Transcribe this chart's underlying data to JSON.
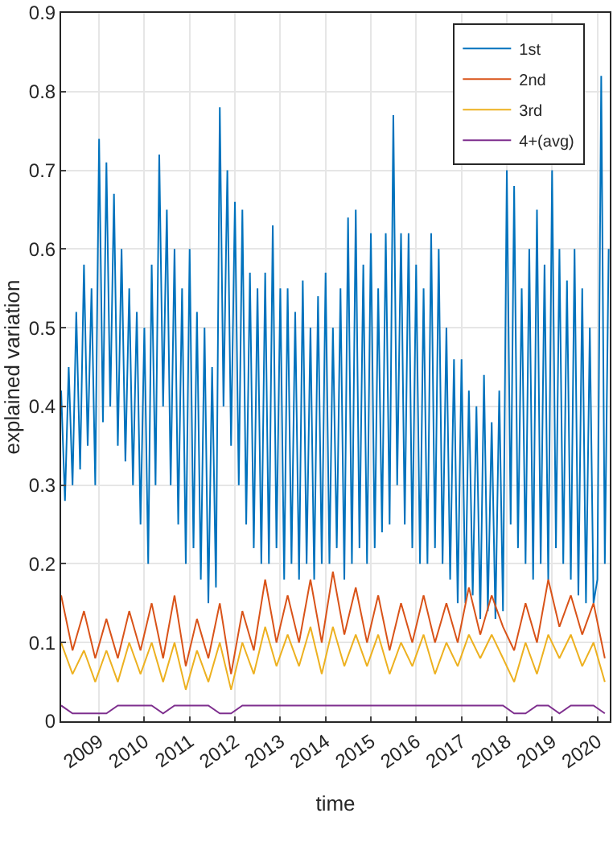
{
  "chart_data": {
    "type": "line",
    "xlabel": "time",
    "ylabel": "explained variation",
    "x": [
      "2008-03",
      "2008-04",
      "2008-05",
      "2008-06",
      "2008-07",
      "2008-08",
      "2008-09",
      "2008-10",
      "2008-11",
      "2008-12",
      "2009-01",
      "2009-02",
      "2009-03",
      "2009-04",
      "2009-05",
      "2009-06",
      "2009-07",
      "2009-08",
      "2009-09",
      "2009-10",
      "2009-11",
      "2009-12",
      "2010-01",
      "2010-02",
      "2010-03",
      "2010-04",
      "2010-05",
      "2010-06",
      "2010-07",
      "2010-08",
      "2010-09",
      "2010-10",
      "2010-11",
      "2010-12",
      "2011-01",
      "2011-02",
      "2011-03",
      "2011-04",
      "2011-05",
      "2011-06",
      "2011-07",
      "2011-08",
      "2011-09",
      "2011-10",
      "2011-11",
      "2011-12",
      "2012-01",
      "2012-02",
      "2012-03",
      "2012-04",
      "2012-05",
      "2012-06",
      "2012-07",
      "2012-08",
      "2012-09",
      "2012-10",
      "2012-11",
      "2012-12",
      "2013-01",
      "2013-02",
      "2013-03",
      "2013-04",
      "2013-05",
      "2013-06",
      "2013-07",
      "2013-08",
      "2013-09",
      "2013-10",
      "2013-11",
      "2013-12",
      "2014-01",
      "2014-02",
      "2014-03",
      "2014-04",
      "2014-05",
      "2014-06",
      "2014-07",
      "2014-08",
      "2014-09",
      "2014-10",
      "2014-11",
      "2014-12",
      "2015-01",
      "2015-02",
      "2015-03",
      "2015-04",
      "2015-05",
      "2015-06",
      "2015-07",
      "2015-08",
      "2015-09",
      "2015-10",
      "2015-11",
      "2015-12",
      "2016-01",
      "2016-02",
      "2016-03",
      "2016-04",
      "2016-05",
      "2016-06",
      "2016-07",
      "2016-08",
      "2016-09",
      "2016-10",
      "2016-11",
      "2016-12",
      "2017-01",
      "2017-02",
      "2017-03",
      "2017-04",
      "2017-05",
      "2017-06",
      "2017-07",
      "2017-08",
      "2017-09",
      "2017-10",
      "2017-11",
      "2017-12",
      "2018-01",
      "2018-02",
      "2018-03",
      "2018-04",
      "2018-05",
      "2018-06",
      "2018-07",
      "2018-08",
      "2018-09",
      "2018-10",
      "2018-11",
      "2018-12",
      "2019-01",
      "2019-02",
      "2019-03",
      "2019-04",
      "2019-05",
      "2019-06",
      "2019-07",
      "2019-08",
      "2019-09",
      "2019-10",
      "2019-11",
      "2019-12",
      "2020-01",
      "2020-02",
      "2020-03",
      "2020-04"
    ],
    "series": [
      {
        "name": "1st",
        "color": "#0072bd",
        "values": [
          0.42,
          0.28,
          0.45,
          0.3,
          0.52,
          0.32,
          0.58,
          0.35,
          0.55,
          0.3,
          0.74,
          0.38,
          0.71,
          0.4,
          0.67,
          0.35,
          0.6,
          0.33,
          0.55,
          0.3,
          0.52,
          0.25,
          0.5,
          0.2,
          0.58,
          0.3,
          0.72,
          0.4,
          0.65,
          0.3,
          0.6,
          0.25,
          0.55,
          0.2,
          0.6,
          0.22,
          0.52,
          0.18,
          0.5,
          0.15,
          0.45,
          0.17,
          0.78,
          0.4,
          0.7,
          0.35,
          0.66,
          0.3,
          0.65,
          0.25,
          0.57,
          0.22,
          0.55,
          0.2,
          0.57,
          0.2,
          0.63,
          0.22,
          0.55,
          0.18,
          0.55,
          0.2,
          0.52,
          0.18,
          0.56,
          0.2,
          0.5,
          0.18,
          0.54,
          0.2,
          0.57,
          0.2,
          0.5,
          0.22,
          0.55,
          0.18,
          0.64,
          0.2,
          0.65,
          0.22,
          0.58,
          0.2,
          0.62,
          0.22,
          0.55,
          0.24,
          0.62,
          0.25,
          0.77,
          0.3,
          0.62,
          0.25,
          0.62,
          0.22,
          0.58,
          0.2,
          0.55,
          0.2,
          0.62,
          0.22,
          0.6,
          0.2,
          0.5,
          0.18,
          0.46,
          0.15,
          0.46,
          0.15,
          0.42,
          0.16,
          0.4,
          0.13,
          0.44,
          0.14,
          0.38,
          0.13,
          0.42,
          0.14,
          0.7,
          0.25,
          0.68,
          0.22,
          0.55,
          0.2,
          0.6,
          0.18,
          0.65,
          0.2,
          0.58,
          0.18,
          0.7,
          0.22,
          0.6,
          0.2,
          0.56,
          0.18,
          0.6,
          0.16,
          0.55,
          0.15,
          0.5,
          0.15,
          0.18,
          0.82,
          0.2,
          0.6
        ]
      },
      {
        "name": "2nd",
        "color": "#d95319",
        "x": [
          "2008-03",
          "2008-06",
          "2008-09",
          "2008-12",
          "2009-03",
          "2009-06",
          "2009-09",
          "2009-12",
          "2010-03",
          "2010-06",
          "2010-09",
          "2010-12",
          "2011-03",
          "2011-06",
          "2011-09",
          "2011-12",
          "2012-03",
          "2012-06",
          "2012-09",
          "2012-12",
          "2013-03",
          "2013-06",
          "2013-09",
          "2013-12",
          "2014-03",
          "2014-06",
          "2014-09",
          "2014-12",
          "2015-03",
          "2015-06",
          "2015-09",
          "2015-12",
          "2016-03",
          "2016-06",
          "2016-09",
          "2016-12",
          "2017-03",
          "2017-06",
          "2017-09",
          "2017-12",
          "2018-03",
          "2018-06",
          "2018-09",
          "2018-12",
          "2019-03",
          "2019-06",
          "2019-09",
          "2019-12",
          "2020-03"
        ],
        "values": [
          0.16,
          0.09,
          0.14,
          0.08,
          0.13,
          0.08,
          0.14,
          0.09,
          0.15,
          0.08,
          0.16,
          0.07,
          0.13,
          0.08,
          0.15,
          0.06,
          0.14,
          0.09,
          0.18,
          0.1,
          0.16,
          0.1,
          0.18,
          0.1,
          0.19,
          0.11,
          0.17,
          0.1,
          0.16,
          0.09,
          0.15,
          0.1,
          0.16,
          0.1,
          0.15,
          0.1,
          0.17,
          0.11,
          0.16,
          0.12,
          0.09,
          0.15,
          0.1,
          0.18,
          0.12,
          0.16,
          0.11,
          0.15,
          0.08
        ]
      },
      {
        "name": "3rd",
        "color": "#edb120",
        "x": [
          "2008-03",
          "2008-06",
          "2008-09",
          "2008-12",
          "2009-03",
          "2009-06",
          "2009-09",
          "2009-12",
          "2010-03",
          "2010-06",
          "2010-09",
          "2010-12",
          "2011-03",
          "2011-06",
          "2011-09",
          "2011-12",
          "2012-03",
          "2012-06",
          "2012-09",
          "2012-12",
          "2013-03",
          "2013-06",
          "2013-09",
          "2013-12",
          "2014-03",
          "2014-06",
          "2014-09",
          "2014-12",
          "2015-03",
          "2015-06",
          "2015-09",
          "2015-12",
          "2016-03",
          "2016-06",
          "2016-09",
          "2016-12",
          "2017-03",
          "2017-06",
          "2017-09",
          "2017-12",
          "2018-03",
          "2018-06",
          "2018-09",
          "2018-12",
          "2019-03",
          "2019-06",
          "2019-09",
          "2019-12",
          "2020-03"
        ],
        "values": [
          0.1,
          0.06,
          0.09,
          0.05,
          0.09,
          0.05,
          0.1,
          0.06,
          0.1,
          0.05,
          0.1,
          0.04,
          0.09,
          0.05,
          0.1,
          0.04,
          0.1,
          0.06,
          0.12,
          0.07,
          0.11,
          0.07,
          0.12,
          0.06,
          0.12,
          0.07,
          0.11,
          0.07,
          0.11,
          0.06,
          0.1,
          0.07,
          0.11,
          0.06,
          0.1,
          0.07,
          0.11,
          0.08,
          0.11,
          0.08,
          0.05,
          0.1,
          0.06,
          0.11,
          0.08,
          0.11,
          0.07,
          0.1,
          0.05
        ]
      },
      {
        "name": "4+(avg)",
        "color": "#7e2f8e",
        "x": [
          "2008-03",
          "2008-06",
          "2008-09",
          "2008-12",
          "2009-03",
          "2009-06",
          "2009-09",
          "2009-12",
          "2010-03",
          "2010-06",
          "2010-09",
          "2010-12",
          "2011-03",
          "2011-06",
          "2011-09",
          "2011-12",
          "2012-03",
          "2012-06",
          "2012-09",
          "2012-12",
          "2013-03",
          "2013-06",
          "2013-09",
          "2013-12",
          "2014-03",
          "2014-06",
          "2014-09",
          "2014-12",
          "2015-03",
          "2015-06",
          "2015-09",
          "2015-12",
          "2016-03",
          "2016-06",
          "2016-09",
          "2016-12",
          "2017-03",
          "2017-06",
          "2017-09",
          "2017-12",
          "2018-03",
          "2018-06",
          "2018-09",
          "2018-12",
          "2019-03",
          "2019-06",
          "2019-09",
          "2019-12",
          "2020-03"
        ],
        "values": [
          0.02,
          0.01,
          0.01,
          0.01,
          0.01,
          0.02,
          0.02,
          0.02,
          0.02,
          0.01,
          0.02,
          0.02,
          0.02,
          0.02,
          0.01,
          0.01,
          0.02,
          0.02,
          0.02,
          0.02,
          0.02,
          0.02,
          0.02,
          0.02,
          0.02,
          0.02,
          0.02,
          0.02,
          0.02,
          0.02,
          0.02,
          0.02,
          0.02,
          0.02,
          0.02,
          0.02,
          0.02,
          0.02,
          0.02,
          0.02,
          0.01,
          0.01,
          0.02,
          0.02,
          0.01,
          0.02,
          0.02,
          0.02,
          0.01
        ]
      }
    ],
    "xlim": [
      "2008-03-01",
      "2020-04-10"
    ],
    "xticks": [
      {
        "value": "2009-01-01",
        "label": "2009"
      },
      {
        "value": "2010-01-01",
        "label": "2010"
      },
      {
        "value": "2011-01-01",
        "label": "2011"
      },
      {
        "value": "2012-01-01",
        "label": "2012"
      },
      {
        "value": "2013-01-01",
        "label": "2013"
      },
      {
        "value": "2014-01-01",
        "label": "2014"
      },
      {
        "value": "2015-01-01",
        "label": "2015"
      },
      {
        "value": "2016-01-01",
        "label": "2016"
      },
      {
        "value": "2017-01-01",
        "label": "2017"
      },
      {
        "value": "2018-01-01",
        "label": "2018"
      },
      {
        "value": "2019-01-01",
        "label": "2019"
      },
      {
        "value": "2020-01-01",
        "label": "2020"
      }
    ],
    "ylim": [
      0,
      0.9
    ],
    "yticks": [
      0,
      0.1,
      0.2,
      0.3,
      0.4,
      0.5,
      0.6,
      0.7,
      0.8,
      0.9
    ],
    "grid": true,
    "legend": "top right",
    "line_style": "solid",
    "marker": "none"
  }
}
